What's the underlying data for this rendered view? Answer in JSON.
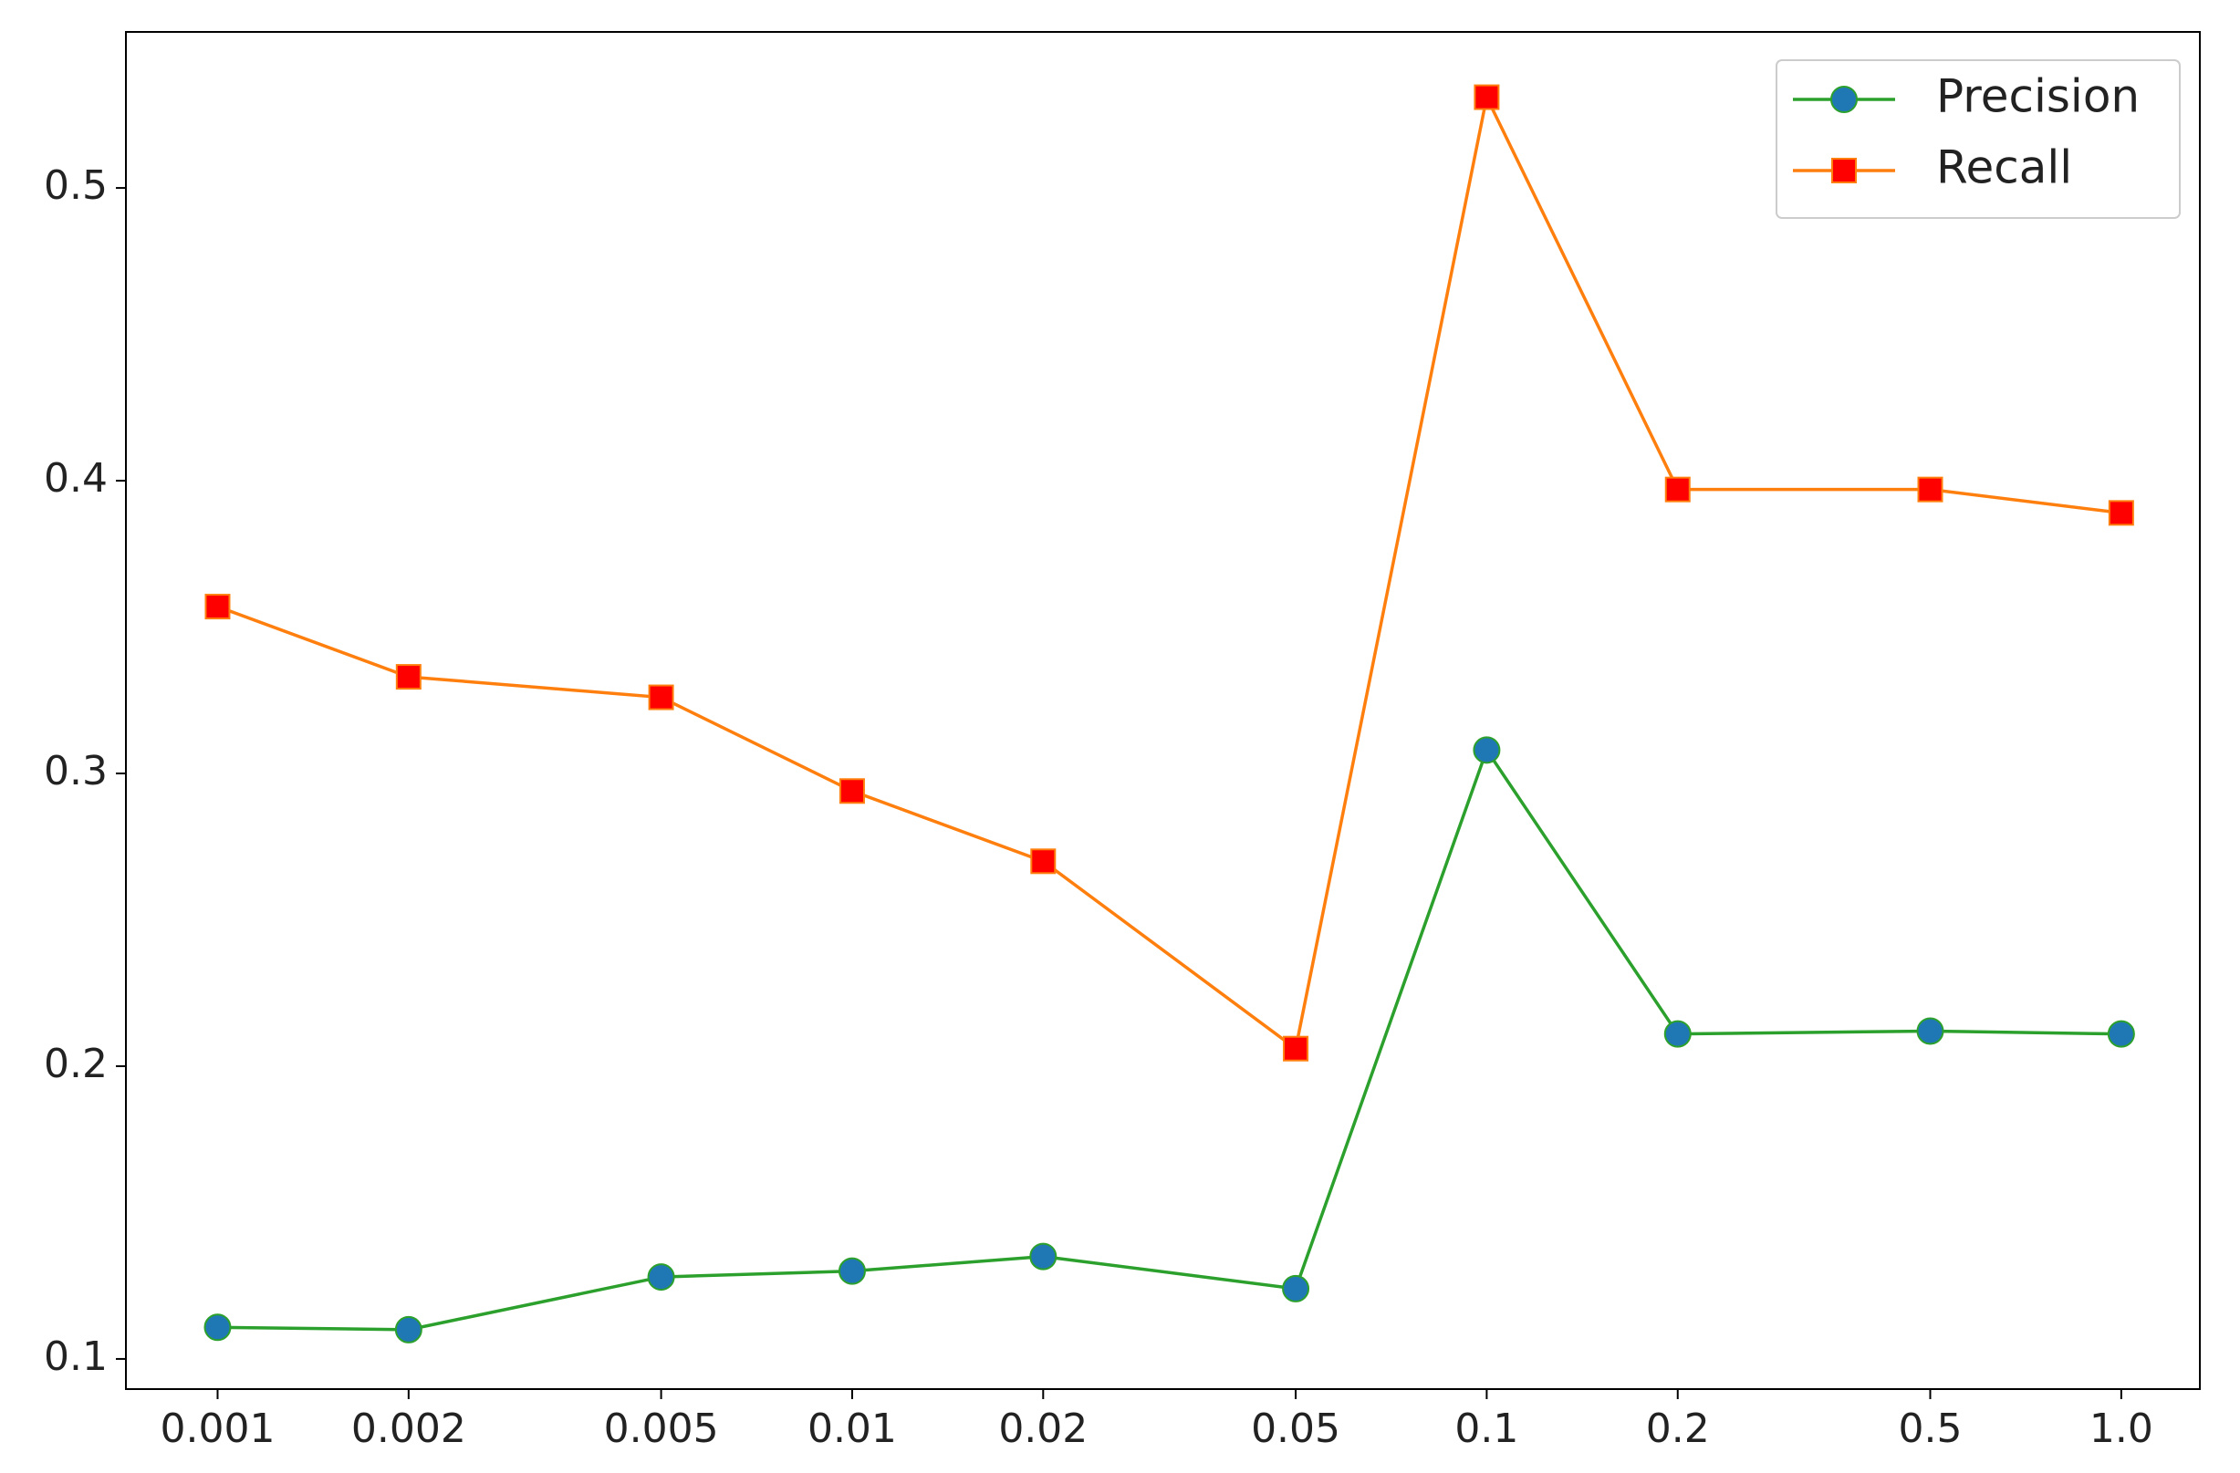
{
  "chart_data": {
    "type": "line",
    "xscale": "log",
    "x": [
      0.001,
      0.002,
      0.005,
      0.01,
      0.02,
      0.05,
      0.1,
      0.2,
      0.5,
      1.0
    ],
    "series": [
      {
        "name": "Precision",
        "color": "#2ca02c",
        "marker": "circle",
        "marker_color": "#1f77b4",
        "values": [
          0.1108,
          0.11,
          0.128,
          0.13,
          0.135,
          0.124,
          0.308,
          0.211,
          0.212,
          0.211
        ]
      },
      {
        "name": "Recall",
        "color": "#ff7f0e",
        "marker": "square",
        "marker_color": "#ff0000",
        "values": [
          0.357,
          0.333,
          0.326,
          0.294,
          0.27,
          0.206,
          0.531,
          0.397,
          0.397,
          0.389
        ]
      }
    ],
    "xlim": [
      0.000717,
      1.33
    ],
    "xticks": [
      0.001,
      0.002,
      0.005,
      0.01,
      0.02,
      0.05,
      0.1,
      0.2,
      0.5,
      {
        "value": 1,
        "label": "1.0"
      }
    ],
    "ylim": [
      0.0897,
      0.5533
    ],
    "yticks": [
      0.1,
      0.2,
      0.3,
      0.4,
      0.5
    ],
    "grid": false,
    "legend": "upper right"
  }
}
